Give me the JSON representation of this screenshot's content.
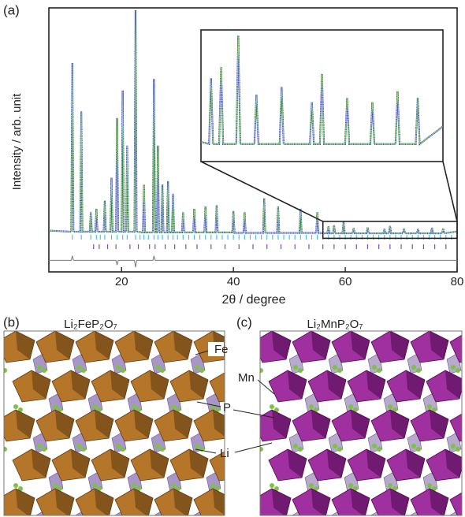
{
  "chart_data": {
    "type": "line",
    "panel_label": "(a)",
    "y_label": "Intensity / arb. unit",
    "x_label": "2θ / degree",
    "xlim": [
      7,
      80
    ],
    "xticks": [
      20,
      40,
      60,
      80
    ],
    "ylim": [
      -15,
      100
    ],
    "pattern": {
      "color": "#2a3a9c",
      "fit_color": "#8fe07a",
      "x": [
        7,
        11.0,
        11.2,
        11.4,
        12.6,
        12.8,
        13.0,
        14.3,
        14.5,
        14.7,
        15.3,
        15.5,
        15.7,
        16.8,
        17.0,
        17.2,
        18.0,
        18.2,
        18.4,
        19.0,
        19.2,
        19.4,
        20.0,
        20.2,
        20.4,
        20.8,
        21.0,
        21.2,
        22.3,
        22.5,
        22.7,
        23.8,
        24.0,
        24.2,
        25.6,
        25.8,
        26.0,
        26.3,
        26.5,
        26.7,
        27.1,
        27.3,
        27.5,
        28.1,
        28.3,
        28.5,
        29.0,
        29.2,
        29.4,
        30.8,
        31.0,
        31.2,
        32.8,
        33.0,
        33.2,
        34.8,
        35.0,
        35.2,
        36.8,
        37.0,
        37.2,
        39.8,
        40.0,
        40.2,
        41.8,
        42.0,
        42.2,
        45.3,
        45.5,
        45.7,
        47.8,
        48.0,
        48.2,
        51.8,
        52.0,
        52.2,
        54.8,
        55.0,
        55.2,
        56.8,
        57.0,
        57.2,
        57.8,
        58.0,
        58.2,
        59.5,
        59.7,
        59.9,
        61.3,
        61.5,
        61.7,
        63.8,
        64.0,
        64.2,
        66.8,
        67.0,
        67.2,
        67.8,
        68.0,
        68.2,
        70.3,
        70.5,
        70.7,
        72.8,
        73.0,
        73.2,
        75.3,
        75.5,
        75.7,
        77.3,
        77.5,
        77.7,
        80
      ],
      "values": [
        3,
        2.5,
        76,
        2.5,
        2.5,
        55,
        2.5,
        2.5,
        11,
        2.5,
        2.5,
        12.5,
        2.5,
        2.5,
        16,
        2.5,
        2.5,
        26,
        2.5,
        2.5,
        52,
        2.5,
        2.5,
        64,
        2.5,
        2.5,
        40,
        2.5,
        2.5,
        99,
        2.5,
        2.2,
        23,
        2.2,
        2.2,
        69,
        2.2,
        2.2,
        40,
        2.2,
        2.2,
        23,
        2.2,
        2.2,
        24.5,
        2.2,
        2.2,
        19,
        2.2,
        2.2,
        11,
        2.2,
        2.2,
        12.5,
        2.2,
        2.2,
        13.5,
        2.2,
        2.2,
        14,
        2.2,
        2.2,
        11.5,
        2.0,
        2.0,
        11,
        2.0,
        2.0,
        17,
        2.0,
        2.0,
        13.5,
        2.0,
        2.0,
        12.5,
        2.0,
        2.0,
        11,
        2.0,
        1.8,
        4.8,
        1.8,
        1.8,
        5.3,
        1.8,
        1.8,
        6.75,
        1.8,
        1.8,
        4.05,
        1.8,
        1.8,
        4.4,
        1.8,
        1.8,
        3.7,
        1.8,
        1.8,
        5,
        1.8,
        1.8,
        3.9,
        1.8,
        1.8,
        3.7,
        1.8,
        1.8,
        4.2,
        1.8,
        1.8,
        3.9,
        1.8,
        2.6
      ]
    },
    "difference": {
      "color": "#777777",
      "x": [
        7,
        11.0,
        11.2,
        11.4,
        19.0,
        19.2,
        19.4,
        22.3,
        22.5,
        22.7,
        25.6,
        25.8,
        26.0,
        80
      ],
      "values": [
        -10,
        -10,
        -8,
        -10,
        -10,
        -12,
        -10,
        -10,
        -13,
        -10,
        -10,
        -8,
        -10,
        -10
      ]
    },
    "reflections": [
      {
        "color": "#45c4ee",
        "x": [
          11.2,
          12.8,
          14.5,
          15.5,
          16.2,
          17,
          18.2,
          19.2,
          20.2,
          21,
          22.5,
          23.3,
          24,
          24.8,
          25.8,
          26.5,
          27.3,
          28.3,
          29.2,
          30,
          31,
          32,
          33,
          34,
          35,
          36,
          37,
          38,
          39,
          40,
          41,
          42,
          43,
          44,
          45,
          46,
          47,
          48,
          49,
          50,
          51,
          52,
          53,
          54,
          55,
          56,
          57,
          58,
          59,
          60,
          61,
          62,
          63,
          64,
          65,
          66,
          67,
          68,
          69,
          70,
          71,
          72,
          73,
          74,
          75,
          76,
          77,
          78,
          79
        ]
      },
      {
        "color": "#7b4fb8",
        "x": [
          15,
          16,
          17.5,
          19,
          21.5,
          23,
          25,
          26,
          27.8,
          29.5,
          31.5,
          33.5,
          36,
          38.5,
          41,
          43.5,
          46,
          48.5,
          51,
          53.5,
          56,
          58,
          60,
          62,
          64,
          66,
          68,
          70,
          72,
          74,
          76,
          78
        ]
      }
    ],
    "inset": {
      "xlim": [
        56,
        80
      ],
      "ylim": [
        1,
        7
      ]
    }
  },
  "structures": [
    {
      "label": "(b)",
      "formula": "Li₂FeP₂O₇"
    },
    {
      "label": "(c)",
      "formula": "Li₂MnP₂O₇"
    }
  ],
  "atom_labels": [
    "Fe",
    "Mn",
    "P",
    "Li"
  ]
}
